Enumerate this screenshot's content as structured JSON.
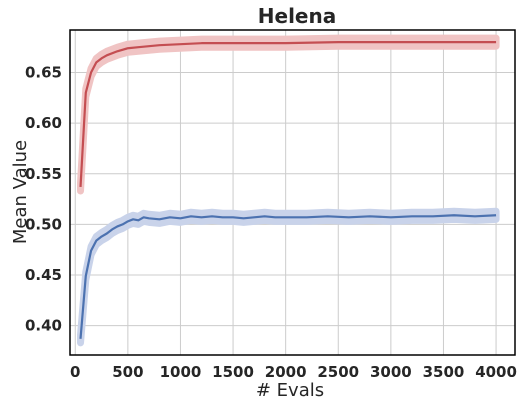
{
  "chart_data": {
    "type": "line",
    "title": "Helena",
    "xlabel": "# Evals",
    "ylabel": "Mean Value",
    "xlim": [
      -50,
      4180
    ],
    "ylim": [
      0.371,
      0.692
    ],
    "xticks": [
      0,
      500,
      1000,
      1500,
      2000,
      2500,
      3000,
      3500,
      4000
    ],
    "yticks": [
      0.4,
      0.45,
      0.5,
      0.55,
      0.6,
      0.65
    ],
    "grid": true,
    "series": [
      {
        "color": "#c44e52",
        "band_color": "#f0c4c4",
        "band": 0.004,
        "x": [
          50,
          100,
          150,
          200,
          250,
          300,
          400,
          500,
          600,
          700,
          800,
          1000,
          1200,
          1500,
          2000,
          2500,
          3000,
          3500,
          4000
        ],
        "y": [
          0.537,
          0.63,
          0.65,
          0.66,
          0.664,
          0.667,
          0.671,
          0.674,
          0.675,
          0.676,
          0.677,
          0.678,
          0.679,
          0.679,
          0.679,
          0.68,
          0.68,
          0.68,
          0.68
        ]
      },
      {
        "color": "#4c72b0",
        "band_color": "#c9d3ea",
        "band": 0.004,
        "x": [
          50,
          100,
          150,
          200,
          250,
          300,
          350,
          400,
          450,
          500,
          550,
          600,
          650,
          700,
          800,
          900,
          1000,
          1100,
          1200,
          1300,
          1400,
          1500,
          1600,
          1700,
          1800,
          1900,
          2000,
          2200,
          2400,
          2600,
          2800,
          3000,
          3200,
          3400,
          3600,
          3800,
          4000
        ],
        "y": [
          0.387,
          0.449,
          0.474,
          0.484,
          0.488,
          0.491,
          0.495,
          0.498,
          0.5,
          0.503,
          0.505,
          0.504,
          0.507,
          0.506,
          0.505,
          0.507,
          0.506,
          0.508,
          0.507,
          0.508,
          0.507,
          0.507,
          0.506,
          0.507,
          0.508,
          0.507,
          0.507,
          0.507,
          0.508,
          0.507,
          0.508,
          0.507,
          0.508,
          0.508,
          0.509,
          0.508,
          0.509
        ]
      }
    ]
  }
}
